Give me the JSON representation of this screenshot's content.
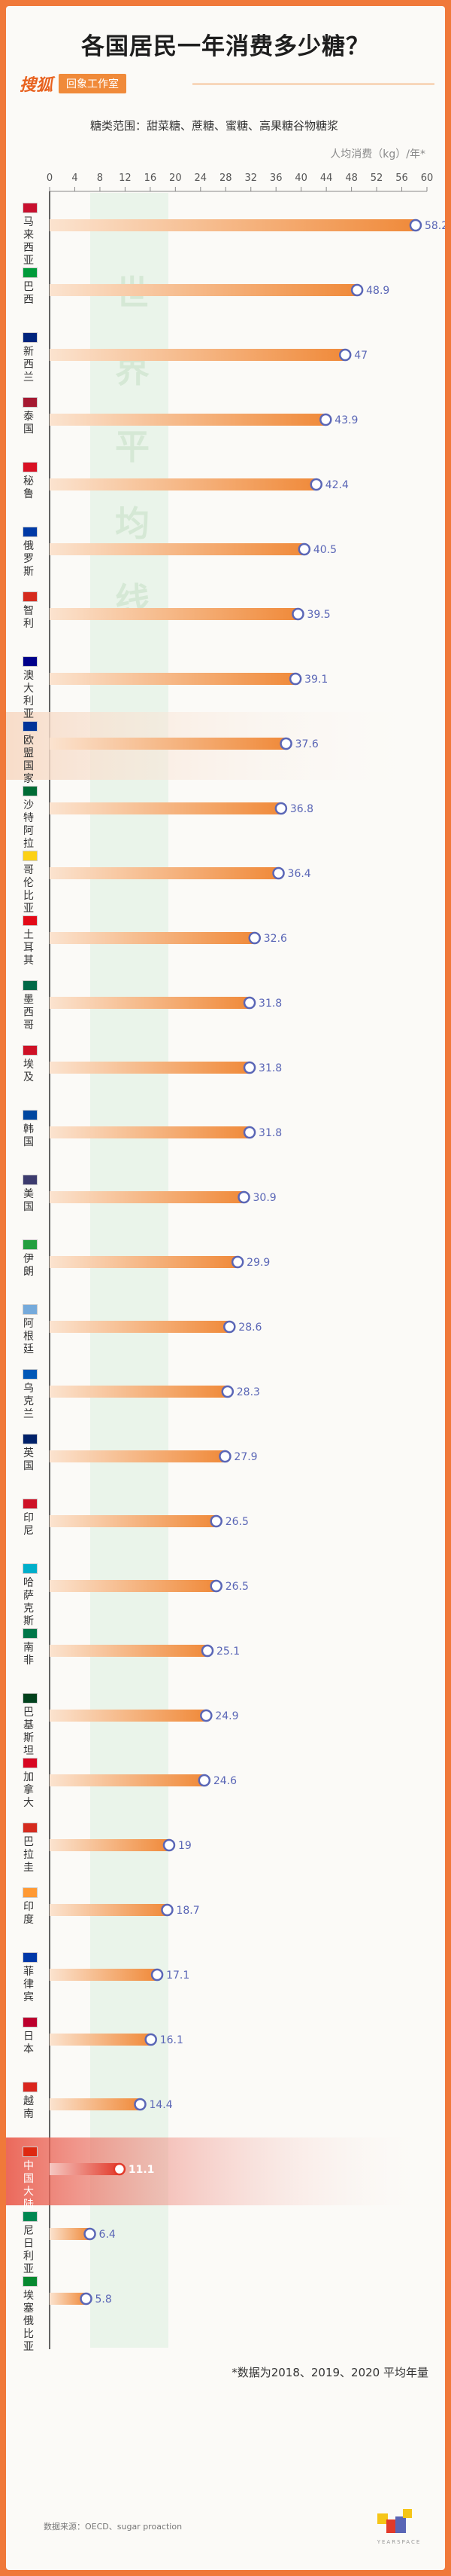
{
  "title": "各国居民一年消费多少糖？",
  "brand": {
    "logo": "搜狐",
    "tag": "回象工作室"
  },
  "scope": "糖类范围：甜菜糖、蔗糖、蜜糖、高果糖谷物糖浆",
  "unit": "人均消费（kg）/年*",
  "watermark": "世界平均线",
  "footnote": "*数据为2018、2019、2020 平均年量",
  "source": "数据来源：OECD、sugar proaction",
  "logo_text": "YEARSPACE",
  "colors": {
    "bar": "#f08a3a",
    "dot": "#5a66b6",
    "highlight": "#e23a2a",
    "background": "#f0793a"
  },
  "chart_data": {
    "type": "bar",
    "orientation": "horizontal",
    "xlim": [
      0,
      60
    ],
    "xticks": [
      0,
      4,
      8,
      12,
      16,
      20,
      24,
      28,
      32,
      36,
      40,
      44,
      48,
      52,
      56,
      60
    ],
    "world_average_band": [
      12,
      20
    ],
    "highlight": [
      "欧盟国家",
      "中国大陆"
    ],
    "categories": [
      "马来西亚",
      "巴西",
      "新西兰",
      "泰国",
      "秘鲁",
      "俄罗斯",
      "智利",
      "澳大利亚",
      "欧盟国家",
      "沙特阿拉伯",
      "哥伦比亚",
      "土耳其",
      "墨西哥",
      "埃及",
      "韩国",
      "美国",
      "伊朗",
      "阿根廷",
      "乌克兰",
      "英国",
      "印尼",
      "哈萨克斯坦",
      "南非",
      "巴基斯坦",
      "加拿大",
      "巴拉圭",
      "印度",
      "菲律宾",
      "日本",
      "越南",
      "中国大陆",
      "尼日利亚",
      "埃塞俄比亚"
    ],
    "values": [
      58.2,
      48.9,
      47,
      43.9,
      42.4,
      40.5,
      39.5,
      39.1,
      37.6,
      36.8,
      36.4,
      32.6,
      31.8,
      31.8,
      31.8,
      30.9,
      29.9,
      28.6,
      28.3,
      27.9,
      26.5,
      26.5,
      25.1,
      24.9,
      24.6,
      19,
      18.7,
      17.1,
      16.1,
      14.4,
      11.1,
      6.4,
      5.8
    ]
  }
}
